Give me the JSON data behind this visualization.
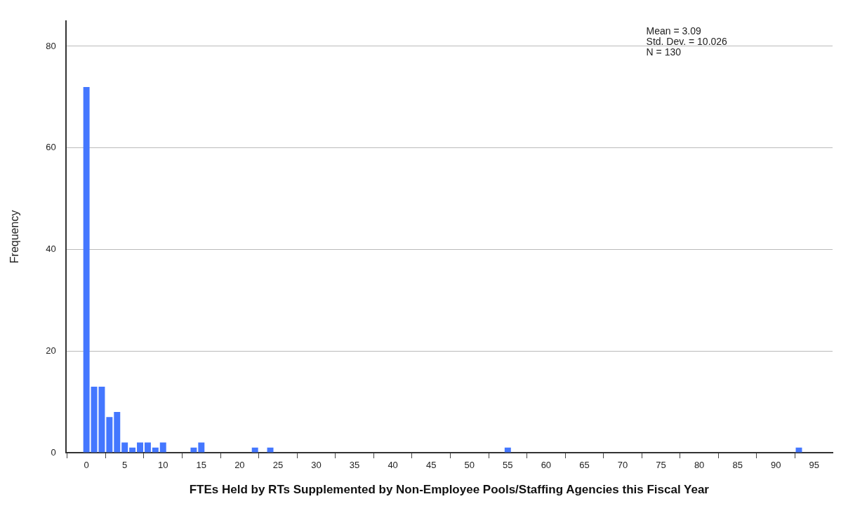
{
  "chart_data": {
    "type": "histogram",
    "xlabel": "FTEs Held by RTs Supplemented by Non-Employee Pools/Staffing Agencies this Fiscal Year",
    "ylabel": "Frequency",
    "bins": [
      -0.5,
      0.5,
      1.5,
      2.5,
      3.5,
      4.5,
      5.5,
      6.5,
      7.5,
      8.5,
      9.5,
      10.5,
      11.5,
      12.5,
      13.5,
      14.5,
      15.5,
      16.5,
      17.5,
      18.5,
      19.5,
      20.5,
      21.5,
      22.5,
      23.5,
      24.5,
      25.5,
      26.5,
      27.5,
      28.5,
      29.5,
      30.5,
      31.5,
      32.5,
      33.5,
      34.5,
      35.5,
      36.5,
      37.5,
      38.5,
      39.5,
      40.5,
      41.5,
      42.5,
      43.5,
      44.5,
      45.5,
      46.5,
      47.5,
      48.5,
      49.5,
      50.5,
      51.5,
      52.5,
      53.5,
      54.5,
      55.5,
      56.5,
      57.5,
      58.5,
      59.5,
      60.5,
      61.5,
      62.5,
      63.5,
      64.5,
      65.5,
      66.5,
      67.5,
      68.5,
      69.5,
      70.5,
      71.5,
      72.5,
      73.5,
      74.5,
      75.5,
      76.5,
      77.5,
      78.5,
      79.5,
      80.5,
      81.5,
      82.5,
      83.5,
      84.5,
      85.5,
      86.5,
      87.5,
      88.5,
      89.5,
      90.5,
      91.5,
      92.5,
      93.5
    ],
    "values": [
      72,
      13,
      13,
      7,
      8,
      2,
      1,
      2,
      2,
      1,
      2,
      0,
      0,
      0,
      1,
      2,
      0,
      0,
      0,
      0,
      0,
      0,
      1,
      0,
      1,
      0,
      0,
      0,
      0,
      0,
      0,
      0,
      0,
      0,
      0,
      0,
      0,
      0,
      0,
      0,
      0,
      0,
      0,
      0,
      0,
      0,
      0,
      0,
      0,
      0,
      0,
      0,
      0,
      0,
      0,
      1,
      0,
      0,
      0,
      0,
      0,
      0,
      0,
      0,
      0,
      0,
      0,
      0,
      0,
      0,
      0,
      0,
      0,
      0,
      0,
      0,
      0,
      0,
      0,
      0,
      0,
      0,
      0,
      0,
      0,
      0,
      0,
      0,
      0,
      0,
      0,
      0,
      0,
      1
    ],
    "color": "#4477ff",
    "xlim": [
      -2.7,
      97.4
    ],
    "xticks": [
      0,
      5,
      10,
      15,
      20,
      25,
      30,
      35,
      40,
      45,
      50,
      55,
      60,
      65,
      70,
      75,
      80,
      85,
      90,
      95
    ],
    "ylim": [
      0,
      85
    ],
    "yticks": [
      0,
      20,
      40,
      60,
      80
    ],
    "grid": "y",
    "legend": false,
    "annotations": [
      "Mean = 3.09",
      "Std. Dev. = 10.026",
      "N = 130"
    ]
  }
}
